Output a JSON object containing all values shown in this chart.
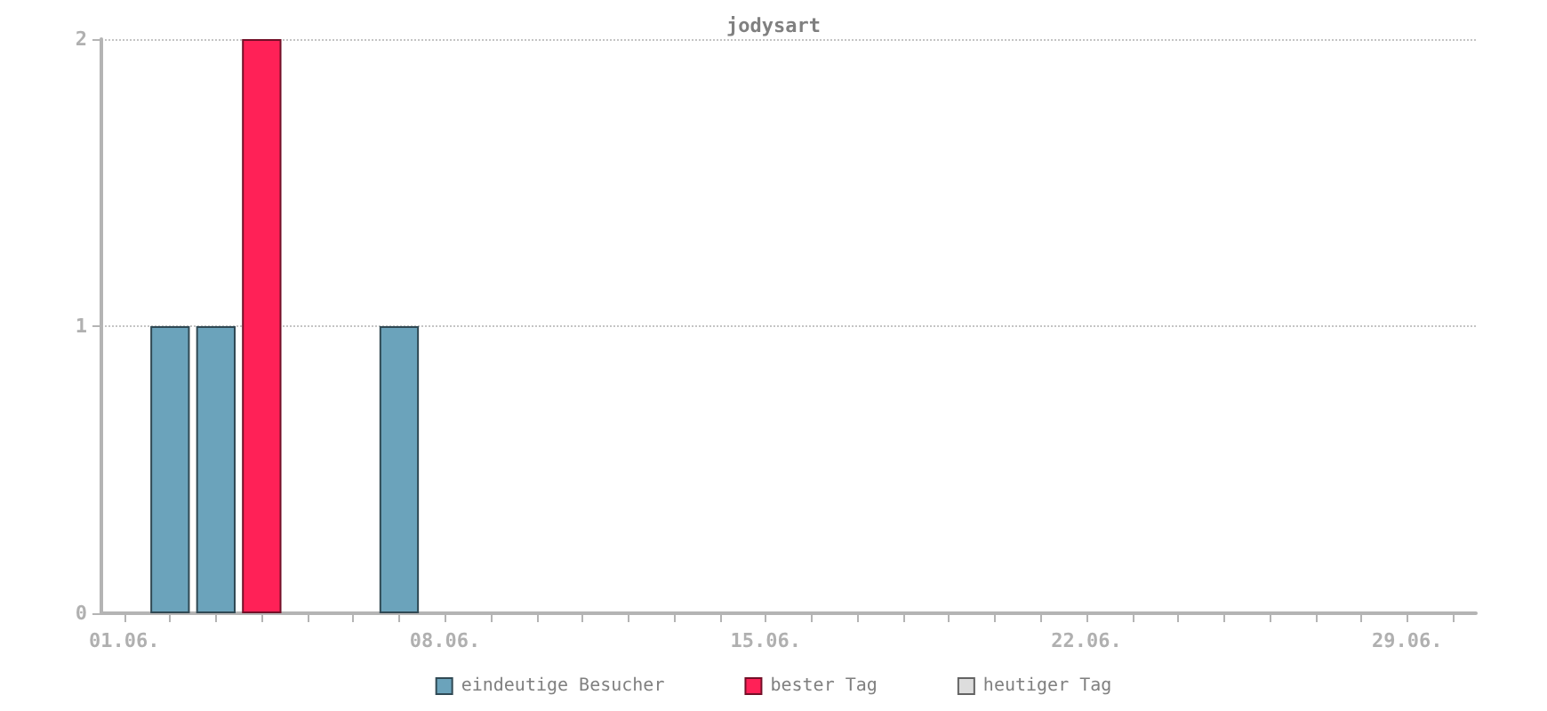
{
  "chart_data": {
    "type": "bar",
    "title": "jodysart",
    "categories": [
      "01.06.",
      null,
      null,
      null,
      null,
      null,
      null,
      "08.06.",
      null,
      null,
      null,
      null,
      null,
      null,
      "15.06.",
      null,
      null,
      null,
      null,
      null,
      null,
      "22.06.",
      null,
      null,
      null,
      null,
      null,
      null,
      "29.06.",
      null
    ],
    "series": [
      {
        "name": "eindeutige Besucher",
        "color": "#6ba3bb",
        "values": [
          null,
          1,
          1,
          null,
          null,
          null,
          1,
          null,
          null,
          null,
          null,
          null,
          null,
          null,
          null,
          null,
          null,
          null,
          null,
          null,
          null,
          null,
          null,
          null,
          null,
          null,
          null,
          null,
          null,
          null
        ]
      },
      {
        "name": "bester Tag",
        "color": "#ff2157",
        "values": [
          null,
          null,
          null,
          2,
          null,
          null,
          null,
          null,
          null,
          null,
          null,
          null,
          null,
          null,
          null,
          null,
          null,
          null,
          null,
          null,
          null,
          null,
          null,
          null,
          null,
          null,
          null,
          null,
          null,
          null
        ]
      },
      {
        "name": "heutiger Tag",
        "color": "#dddddd",
        "values": [
          null,
          null,
          null,
          null,
          null,
          null,
          null,
          null,
          null,
          null,
          null,
          null,
          null,
          null,
          null,
          null,
          null,
          null,
          null,
          null,
          null,
          null,
          null,
          null,
          null,
          null,
          null,
          null,
          null,
          null
        ]
      }
    ],
    "ylim": [
      0,
      2
    ],
    "yticks": [
      0,
      1,
      2
    ],
    "grid": "y",
    "legend": "bottom"
  }
}
